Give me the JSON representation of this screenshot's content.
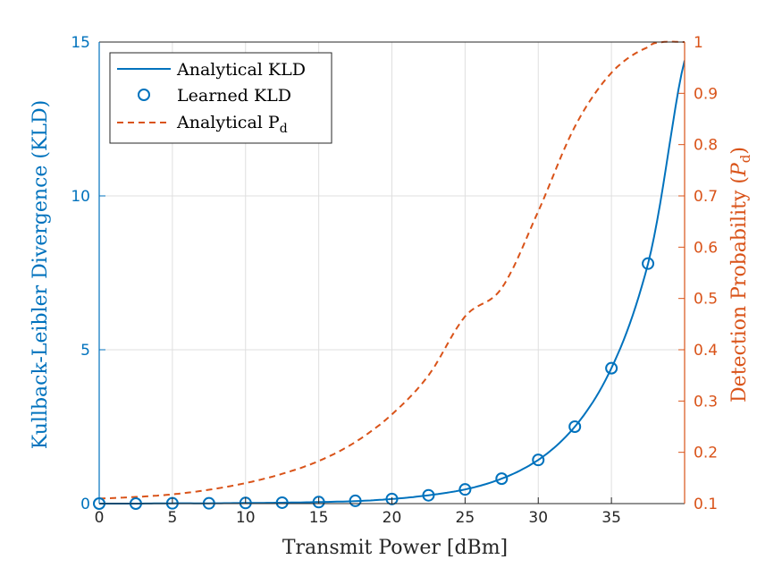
{
  "chart_data": {
    "type": "line",
    "xlabel": "Transmit Power [dBm]",
    "ylabel_left": "Kullback-Leibler Divergence (KLD)",
    "ylabel_right_prefix": "Detection Probability (",
    "ylabel_right_symbol": "P",
    "ylabel_right_subscript": "d",
    "ylabel_right_suffix": ")",
    "xlim": [
      0,
      40
    ],
    "ylim_left": [
      0,
      15
    ],
    "ylim_right": [
      0.1,
      1.0
    ],
    "xticks": [
      "0",
      "5",
      "10",
      "15",
      "20",
      "25",
      "30",
      "35"
    ],
    "yticks_left": [
      "0",
      "5",
      "10",
      "15"
    ],
    "yticks_right": [
      "0.1",
      "0.2",
      "0.3",
      "0.4",
      "0.5",
      "0.6",
      "0.7",
      "0.8",
      "0.9",
      "1"
    ],
    "grid": true,
    "legend_position": "top-left",
    "colors": {
      "kld": "#0072BD",
      "pd": "#D95319",
      "axis": "#262626",
      "grid": "#dfdfdf"
    },
    "series": [
      {
        "name": "Analytical KLD",
        "style": "solid-line",
        "axis": "left",
        "x": [
          0,
          2.5,
          5,
          7.5,
          10,
          12.5,
          15,
          17.5,
          20,
          22.5,
          25,
          27.5,
          30,
          32.5,
          35,
          37.5,
          40
        ],
        "values": [
          0.0,
          0.0,
          0.01,
          0.01,
          0.02,
          0.03,
          0.05,
          0.08,
          0.15,
          0.27,
          0.46,
          0.81,
          1.42,
          2.5,
          4.4,
          7.8,
          14.4
        ]
      },
      {
        "name": "Learned KLD",
        "style": "circle-markers",
        "axis": "left",
        "x": [
          0,
          2.5,
          5,
          7.5,
          10,
          12.5,
          15,
          17.5,
          20,
          22.5,
          25,
          27.5,
          30,
          32.5,
          35,
          37.5
        ],
        "values": [
          0.0,
          0.0,
          0.01,
          0.01,
          0.02,
          0.03,
          0.05,
          0.09,
          0.15,
          0.27,
          0.46,
          0.81,
          1.42,
          2.5,
          4.4,
          7.8
        ]
      },
      {
        "name": "Analytical P",
        "name_subscript": "d",
        "style": "dashed-line",
        "axis": "right",
        "x": [
          0,
          2.5,
          5,
          7.5,
          10,
          12.5,
          15,
          17.5,
          20,
          22.5,
          25,
          27.5,
          30,
          32.5,
          35,
          37.5,
          38.5,
          40
        ],
        "values": [
          0.11,
          0.113,
          0.118,
          0.127,
          0.14,
          0.158,
          0.183,
          0.22,
          0.274,
          0.35,
          0.465,
          0.52,
          0.67,
          0.835,
          0.94,
          0.99,
          1.0,
          1.0
        ]
      }
    ]
  }
}
